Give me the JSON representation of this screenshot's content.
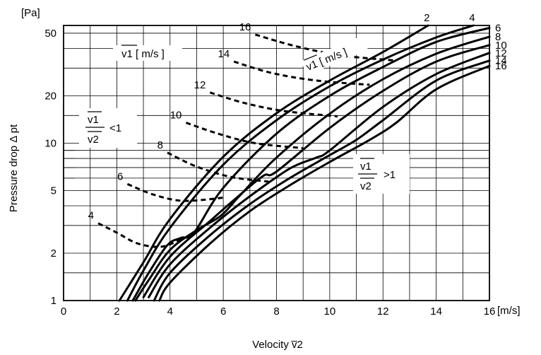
{
  "chart_data": {
    "type": "line",
    "xlabel": "Velocity v̅2",
    "ylabel": "Pressure drop Δ pt",
    "x_unit": "[m/s]",
    "y_unit": "[Pa]",
    "x_scale": "linear",
    "y_scale": "log",
    "xlim": [
      0,
      16
    ],
    "ylim": [
      1,
      56
    ],
    "x_ticks": [
      "0",
      "2",
      "4",
      "6",
      "8",
      "10",
      "12",
      "14",
      "16"
    ],
    "y_ticks": [
      "1",
      "2",
      "5",
      "10",
      "20",
      "50"
    ],
    "grid": true,
    "legend": "none",
    "annotations": {
      "v1_label_left": "v1 [ m/s ]",
      "v1_label_right": "v1 [ m/s ]",
      "ratio_lt_num": "v1",
      "ratio_lt_den": "v2",
      "ratio_lt_sign": "<1",
      "ratio_gt_num": "v1",
      "ratio_gt_den": "v2",
      "ratio_gt_sign": ">1"
    },
    "series": [
      {
        "name": "2",
        "style": "solid",
        "label_pos": "end",
        "points": [
          [
            2.1,
            1.0
          ],
          [
            3,
            1.75
          ],
          [
            4,
            3.3
          ],
          [
            6,
            8.2
          ],
          [
            8,
            15.5
          ],
          [
            10,
            25
          ],
          [
            12,
            38
          ],
          [
            13.7,
            56
          ]
        ]
      },
      {
        "name": "4",
        "style": "solid",
        "label_pos": "end",
        "points": [
          [
            2.4,
            1.0
          ],
          [
            3,
            1.55
          ],
          [
            4,
            2.9
          ],
          [
            6,
            7.3
          ],
          [
            8,
            14
          ],
          [
            10,
            23
          ],
          [
            12,
            34
          ],
          [
            14,
            47
          ],
          [
            15.4,
            56
          ]
        ]
      },
      {
        "name": "4",
        "style": "dashed",
        "label_pos": "start",
        "points": [
          [
            1.3,
            3.1
          ],
          [
            2,
            2.7
          ],
          [
            2.8,
            2.3
          ],
          [
            3.7,
            2.2
          ],
          [
            4.5,
            2.5
          ]
        ]
      },
      {
        "name": "6",
        "style": "solid",
        "label_pos": "end",
        "points": [
          [
            2.6,
            1.0
          ],
          [
            3.2,
            1.5
          ],
          [
            3.9,
            2.25
          ],
          [
            4.4,
            2.5
          ],
          [
            4.9,
            2.7
          ],
          [
            6,
            5.2
          ],
          [
            8,
            11.5
          ],
          [
            10,
            20
          ],
          [
            12,
            30.5
          ],
          [
            14,
            44
          ],
          [
            16,
            54
          ]
        ]
      },
      {
        "name": "6",
        "style": "dashed",
        "label_pos": "start",
        "points": [
          [
            2.4,
            5.5
          ],
          [
            3.4,
            4.7
          ],
          [
            4.5,
            4.3
          ],
          [
            6,
            4.5
          ]
        ]
      },
      {
        "name": "8",
        "style": "solid",
        "label_pos": "end",
        "points": [
          [
            2.7,
            1.0
          ],
          [
            3.2,
            1.35
          ],
          [
            4,
            2.1
          ],
          [
            5,
            2.8
          ],
          [
            5.9,
            3.45
          ],
          [
            6.6,
            4.6
          ],
          [
            8,
            8.1
          ],
          [
            10,
            15.4
          ],
          [
            12,
            25.5
          ],
          [
            14,
            37
          ],
          [
            16,
            47.5
          ]
        ]
      },
      {
        "name": "8",
        "style": "dashed",
        "label_pos": "start",
        "points": [
          [
            3.9,
            8.7
          ],
          [
            5,
            7.1
          ],
          [
            6.3,
            6.1
          ],
          [
            7.7,
            5.7
          ]
        ]
      },
      {
        "name": "10",
        "style": "solid",
        "label_pos": "end",
        "points": [
          [
            3.0,
            1.05
          ],
          [
            4,
            1.9
          ],
          [
            5.5,
            3.2
          ],
          [
            6.5,
            4.5
          ],
          [
            7.5,
            6.2
          ],
          [
            8,
            6.6
          ],
          [
            10,
            12.5
          ],
          [
            12,
            21.5
          ],
          [
            14,
            33
          ],
          [
            16,
            42
          ]
        ]
      },
      {
        "name": "10",
        "style": "dashed",
        "label_pos": "start",
        "points": [
          [
            4.6,
            13.5
          ],
          [
            5.8,
            11.5
          ],
          [
            7.2,
            10
          ],
          [
            9,
            9.3
          ]
        ]
      },
      {
        "name": "12",
        "style": "solid",
        "label_pos": "end",
        "points": [
          [
            3.2,
            1.05
          ],
          [
            4,
            1.7
          ],
          [
            5.5,
            2.9
          ],
          [
            7,
            4.6
          ],
          [
            8.5,
            6.9
          ],
          [
            9.5,
            8.1
          ],
          [
            10,
            9
          ],
          [
            12,
            17
          ],
          [
            14,
            27.5
          ],
          [
            16,
            37.5
          ]
        ]
      },
      {
        "name": "12",
        "style": "dashed",
        "label_pos": "start",
        "points": [
          [
            5.5,
            21
          ],
          [
            6.8,
            18
          ],
          [
            8.3,
            16
          ],
          [
            10.3,
            14.8
          ]
        ]
      },
      {
        "name": "14",
        "style": "solid",
        "label_pos": "end",
        "points": [
          [
            3.4,
            1.0
          ],
          [
            4,
            1.5
          ],
          [
            5.5,
            2.6
          ],
          [
            7,
            4.1
          ],
          [
            8.5,
            6.0
          ],
          [
            10,
            8.4
          ],
          [
            11,
            10.5
          ],
          [
            12,
            14
          ],
          [
            14,
            25
          ],
          [
            16,
            33.5
          ]
        ]
      },
      {
        "name": "14",
        "style": "dashed",
        "label_pos": "start",
        "points": [
          [
            6.4,
            33
          ],
          [
            7.8,
            28
          ],
          [
            9.5,
            25
          ],
          [
            11.5,
            23.5
          ]
        ]
      },
      {
        "name": "16",
        "style": "solid",
        "label_pos": "end",
        "points": [
          [
            3.6,
            1.0
          ],
          [
            4,
            1.3
          ],
          [
            5.5,
            2.3
          ],
          [
            7,
            3.7
          ],
          [
            8.5,
            5.4
          ],
          [
            10,
            7.6
          ],
          [
            11.5,
            10.5
          ],
          [
            12.5,
            13.5
          ],
          [
            14,
            22
          ],
          [
            16,
            31
          ]
        ]
      },
      {
        "name": "16",
        "style": "dashed",
        "label_pos": "start",
        "points": [
          [
            7.2,
            49
          ],
          [
            8.8,
            41
          ],
          [
            10.5,
            36
          ],
          [
            12.5,
            33.5
          ]
        ]
      }
    ]
  }
}
